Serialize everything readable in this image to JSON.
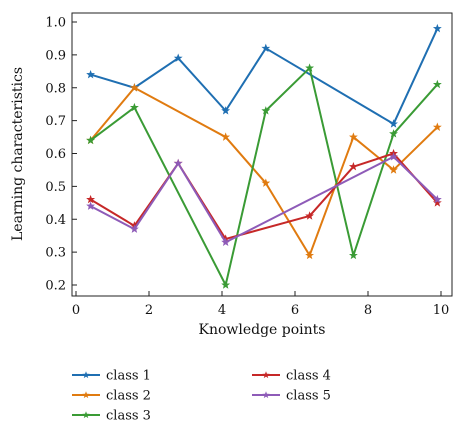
{
  "chart_data": {
    "type": "line",
    "title": "",
    "xlabel": "Knowledge points",
    "ylabel": "Learning characteristics",
    "xlim": [
      0,
      10
    ],
    "ylim": [
      0.2,
      1.0
    ],
    "xticks": [
      "0",
      "2",
      "4",
      "6",
      "8",
      "10"
    ],
    "yticks": [
      "0.2",
      "0.3",
      "0.4",
      "0.5",
      "0.6",
      "0.7",
      "0.8",
      "0.9",
      "1.0"
    ],
    "grid": false,
    "legend_position": "below",
    "series": [
      {
        "name": "class 1",
        "color": "#1f6fb2",
        "points": [
          [
            0.4,
            0.84
          ],
          [
            1.6,
            0.8
          ],
          [
            2.8,
            0.89
          ],
          [
            4.1,
            0.73
          ],
          [
            5.2,
            0.92
          ],
          [
            8.7,
            0.69
          ],
          [
            9.9,
            0.98
          ]
        ]
      },
      {
        "name": "class 2",
        "color": "#e07b10",
        "points": [
          [
            0.4,
            0.64
          ],
          [
            1.6,
            0.8
          ],
          [
            4.1,
            0.65
          ],
          [
            5.2,
            0.51
          ],
          [
            6.4,
            0.29
          ],
          [
            7.6,
            0.65
          ],
          [
            8.7,
            0.55
          ],
          [
            9.9,
            0.68
          ]
        ]
      },
      {
        "name": "class 3",
        "color": "#3a9b35",
        "points": [
          [
            0.4,
            0.64
          ],
          [
            1.6,
            0.74
          ],
          [
            4.1,
            0.2
          ],
          [
            5.2,
            0.73
          ],
          [
            6.4,
            0.86
          ],
          [
            7.6,
            0.29
          ],
          [
            8.7,
            0.66
          ],
          [
            9.9,
            0.81
          ]
        ]
      },
      {
        "name": "class 4",
        "color": "#c62828",
        "points": [
          [
            0.4,
            0.46
          ],
          [
            1.6,
            0.38
          ],
          [
            2.8,
            0.57
          ],
          [
            4.1,
            0.34
          ],
          [
            6.4,
            0.41
          ],
          [
            7.6,
            0.56
          ],
          [
            8.7,
            0.6
          ],
          [
            9.9,
            0.45
          ]
        ]
      },
      {
        "name": "class 5",
        "color": "#8e5bb8",
        "points": [
          [
            0.4,
            0.44
          ],
          [
            1.6,
            0.37
          ],
          [
            2.8,
            0.57
          ],
          [
            4.1,
            0.33
          ],
          [
            8.7,
            0.59
          ],
          [
            9.9,
            0.46
          ]
        ]
      }
    ]
  }
}
